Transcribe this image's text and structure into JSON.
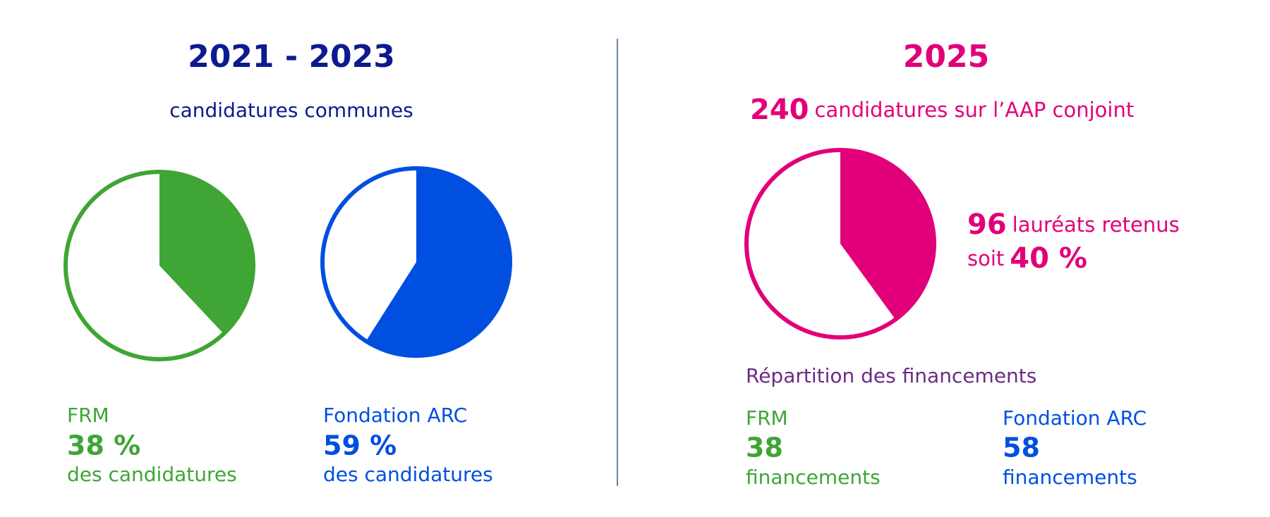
{
  "left": {
    "title": "2021 - 2023",
    "subtitle": "candidatures communes",
    "color": "#0d1a8f",
    "pies": [
      {
        "name": "FRM",
        "value": 38,
        "value_label": "38 %",
        "caption": "des candidatures",
        "color": "#3fa535"
      },
      {
        "name": "Fondation ARC",
        "value": 59,
        "value_label": "59 %",
        "caption": "des candidatures",
        "color": "#004fe0"
      }
    ]
  },
  "right": {
    "title": "2025",
    "color": "#e2007a",
    "applications": 240,
    "applications_text": "candidatures sur l’AAP conjoint",
    "laureates": 96,
    "laureates_text": "lauréats retenus",
    "share_prefix": "soit",
    "share": 40,
    "share_label": "40 %",
    "funding_title": "Répartition des financements",
    "funding_color": "#6a2c84",
    "funding": [
      {
        "name": "FRM",
        "value": 38,
        "caption": "financements",
        "color": "#3fa535"
      },
      {
        "name": "Fondation ARC",
        "value": 58,
        "caption": "financements",
        "color": "#004fe0"
      }
    ]
  }
}
